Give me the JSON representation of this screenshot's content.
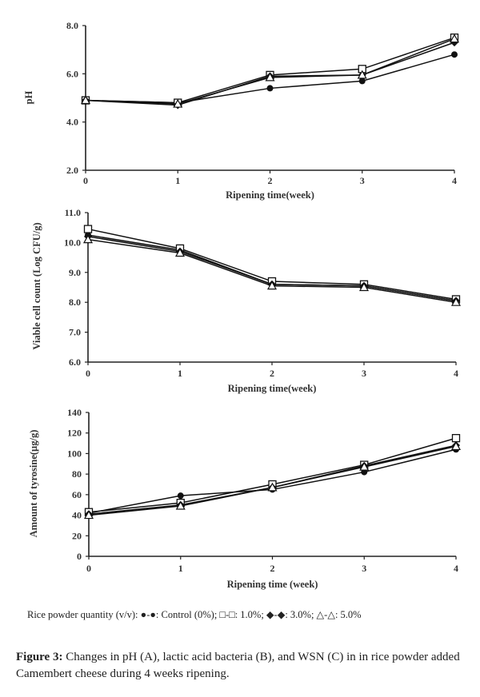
{
  "chart_data": [
    {
      "type": "line",
      "panel": "A",
      "title": "",
      "xlabel": "Ripening time(week)",
      "ylabel": "pH",
      "x": [
        0,
        1,
        2,
        3,
        4
      ],
      "xticks": [
        "0",
        "1",
        "2",
        "3",
        "4"
      ],
      "yticks": [
        "2.0",
        "4.0",
        "6.0",
        "8.0"
      ],
      "ytick_values": [
        2,
        4,
        6,
        8
      ],
      "ylim": [
        2,
        8
      ],
      "grid": false,
      "series": [
        {
          "name": "Control (0%)",
          "marker": "circle-filled",
          "values": [
            4.9,
            4.8,
            5.4,
            5.7,
            6.8
          ]
        },
        {
          "name": "1.0%",
          "marker": "square-open",
          "values": [
            4.9,
            4.8,
            5.95,
            6.2,
            7.5
          ]
        },
        {
          "name": "3.0%",
          "marker": "diamond-filled",
          "values": [
            4.9,
            4.7,
            5.9,
            5.95,
            7.3
          ]
        },
        {
          "name": "5.0%",
          "marker": "triangle-open",
          "values": [
            4.9,
            4.75,
            5.85,
            5.95,
            7.45
          ]
        }
      ]
    },
    {
      "type": "line",
      "panel": "B",
      "title": "",
      "xlabel": "Ripening time(week)",
      "ylabel": "Viable cell count (Log CFU/g)",
      "x": [
        0,
        1,
        2,
        3,
        4
      ],
      "xticks": [
        "0",
        "1",
        "2",
        "3",
        "4"
      ],
      "yticks": [
        "6.0",
        "7.0",
        "8.0",
        "9.0",
        "10.0",
        "11.0"
      ],
      "ytick_values": [
        6,
        7,
        8,
        9,
        10,
        11
      ],
      "ylim": [
        6,
        11
      ],
      "grid": false,
      "series": [
        {
          "name": "Control (0%)",
          "marker": "circle-filled",
          "values": [
            10.25,
            9.75,
            8.6,
            8.55,
            8.05
          ]
        },
        {
          "name": "1.0%",
          "marker": "square-open",
          "values": [
            10.45,
            9.8,
            8.7,
            8.6,
            8.1
          ]
        },
        {
          "name": "3.0%",
          "marker": "diamond-filled",
          "values": [
            10.2,
            9.7,
            8.6,
            8.55,
            8.05
          ]
        },
        {
          "name": "5.0%",
          "marker": "triangle-open",
          "values": [
            10.1,
            9.65,
            8.55,
            8.5,
            8.0
          ]
        }
      ]
    },
    {
      "type": "line",
      "panel": "C",
      "title": "",
      "xlabel": "Ripening time (week)",
      "ylabel": "Amount of tyrosine(µg/g)",
      "x": [
        0,
        1,
        2,
        3,
        4
      ],
      "xticks": [
        "0",
        "1",
        "2",
        "3",
        "4"
      ],
      "yticks": [
        "0",
        "20",
        "40",
        "60",
        "80",
        "100",
        "120",
        "140"
      ],
      "ytick_values": [
        0,
        20,
        40,
        60,
        80,
        100,
        120,
        140
      ],
      "ylim": [
        0,
        140
      ],
      "grid": false,
      "series": [
        {
          "name": "Control (0%)",
          "marker": "circle-filled",
          "values": [
            42,
            59,
            65,
            82,
            104
          ]
        },
        {
          "name": "1.0%",
          "marker": "square-open",
          "values": [
            43,
            52,
            70,
            89,
            115
          ]
        },
        {
          "name": "3.0%",
          "marker": "diamond-filled",
          "values": [
            41,
            50,
            67,
            88,
            108
          ]
        },
        {
          "name": "5.0%",
          "marker": "triangle-open",
          "values": [
            40,
            49,
            67,
            87,
            107
          ]
        }
      ]
    }
  ],
  "legend": {
    "prefix": "Rice powder quantity (v/v):",
    "items": [
      {
        "symbol": "●-●",
        "label": ": Control (0%);"
      },
      {
        "symbol": "□-□",
        "label": ": 1.0%;"
      },
      {
        "symbol": "◆-◆",
        "label": ": 3.0%;"
      },
      {
        "symbol": "△-△",
        "label": ": 5.0%"
      }
    ]
  },
  "caption": {
    "label": "Figure 3:",
    "text": " Changes in pH (A), lactic acid bacteria (B), and WSN (C) in in rice powder added Camembert cheese during 4 weeks ripening."
  },
  "colors": {
    "line": "#111111",
    "text": "#333333"
  }
}
